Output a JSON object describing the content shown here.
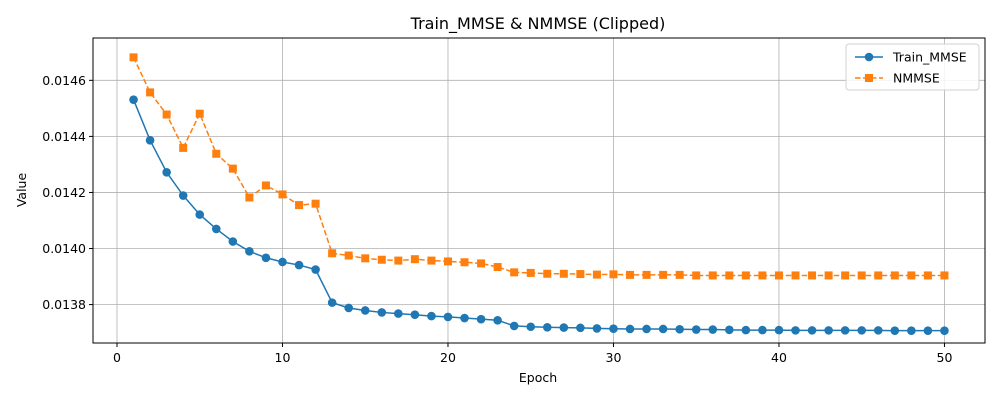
{
  "chart_data": {
    "type": "line",
    "title": "Train_MMSE & NMMSE (Clipped)",
    "xlabel": "Epoch",
    "ylabel": "Value",
    "xlim": [
      -1.45,
      52.45
    ],
    "ylim": [
      0.013663,
      0.014751
    ],
    "xticks": [
      0,
      10,
      20,
      30,
      40,
      50
    ],
    "xtick_labels": [
      "0",
      "10",
      "20",
      "30",
      "40",
      "50"
    ],
    "yticks": [
      0.0138,
      0.014,
      0.0142,
      0.0144,
      0.0146
    ],
    "ytick_labels": [
      "0.0138",
      "0.0140",
      "0.0142",
      "0.0144",
      "0.0146"
    ],
    "grid": true,
    "legend_position": "top-right",
    "x": [
      1,
      2,
      3,
      4,
      5,
      6,
      7,
      8,
      9,
      10,
      11,
      12,
      13,
      14,
      15,
      16,
      17,
      18,
      19,
      20,
      21,
      22,
      23,
      24,
      25,
      26,
      27,
      28,
      29,
      30,
      31,
      32,
      33,
      34,
      35,
      36,
      37,
      38,
      39,
      40,
      41,
      42,
      43,
      44,
      45,
      46,
      47,
      48,
      49,
      50
    ],
    "series": [
      {
        "name": "Train_MMSE",
        "color": "#1f77b4",
        "line_style": "solid",
        "marker": "circle",
        "values": [
          0.014531,
          0.014386,
          0.014272,
          0.014189,
          0.014121,
          0.01407,
          0.014025,
          0.01399,
          0.013967,
          0.013952,
          0.013941,
          0.013925,
          0.013807,
          0.013788,
          0.013779,
          0.013772,
          0.013768,
          0.013764,
          0.013759,
          0.013756,
          0.013752,
          0.013748,
          0.013744,
          0.013724,
          0.013721,
          0.013719,
          0.013718,
          0.013717,
          0.013715,
          0.013714,
          0.013713,
          0.013713,
          0.013713,
          0.013712,
          0.013711,
          0.013711,
          0.01371,
          0.013709,
          0.013709,
          0.013709,
          0.013708,
          0.013708,
          0.013708,
          0.013708,
          0.013708,
          0.013708,
          0.013707,
          0.013707,
          0.013707,
          0.013707
        ]
      },
      {
        "name": "NMMSE",
        "color": "#ff7f0e",
        "line_style": "dashed",
        "marker": "square",
        "values": [
          0.014682,
          0.014557,
          0.014478,
          0.014359,
          0.014481,
          0.014338,
          0.014285,
          0.014182,
          0.014225,
          0.014193,
          0.014155,
          0.01416,
          0.013983,
          0.013975,
          0.013965,
          0.01396,
          0.013957,
          0.013962,
          0.013957,
          0.013954,
          0.013951,
          0.013947,
          0.013934,
          0.013915,
          0.013913,
          0.01391,
          0.01391,
          0.013909,
          0.013907,
          0.013908,
          0.013906,
          0.013906,
          0.013906,
          0.013906,
          0.013904,
          0.013904,
          0.013904,
          0.013904,
          0.013904,
          0.013904,
          0.013904,
          0.013904,
          0.013904,
          0.013904,
          0.013904,
          0.013904,
          0.013904,
          0.013904,
          0.013904,
          0.013904
        ]
      }
    ]
  }
}
